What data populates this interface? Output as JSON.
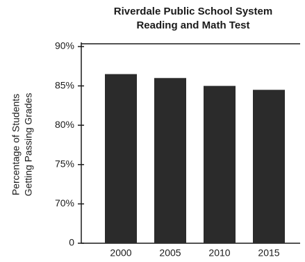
{
  "chart_data": {
    "type": "bar",
    "title": [
      "Riverdale Public School System",
      "Reading and Math Test"
    ],
    "ylabel": [
      "Percentage of Students",
      "Getting Passing Grades"
    ],
    "categories": [
      "2000",
      "2005",
      "2010",
      "2015"
    ],
    "values": [
      86.5,
      86,
      85,
      84.5
    ],
    "color": "#2b2b2b",
    "ylim": [
      0,
      90
    ],
    "axis_break": [
      0,
      65
    ],
    "yticks": [
      0,
      {
        "value": 70,
        "label": "70%"
      },
      {
        "value": 75,
        "label": "75%"
      },
      {
        "value": 80,
        "label": "80%"
      },
      {
        "value": 85,
        "label": "85%"
      },
      {
        "value": 90,
        "label": "90%"
      }
    ]
  }
}
